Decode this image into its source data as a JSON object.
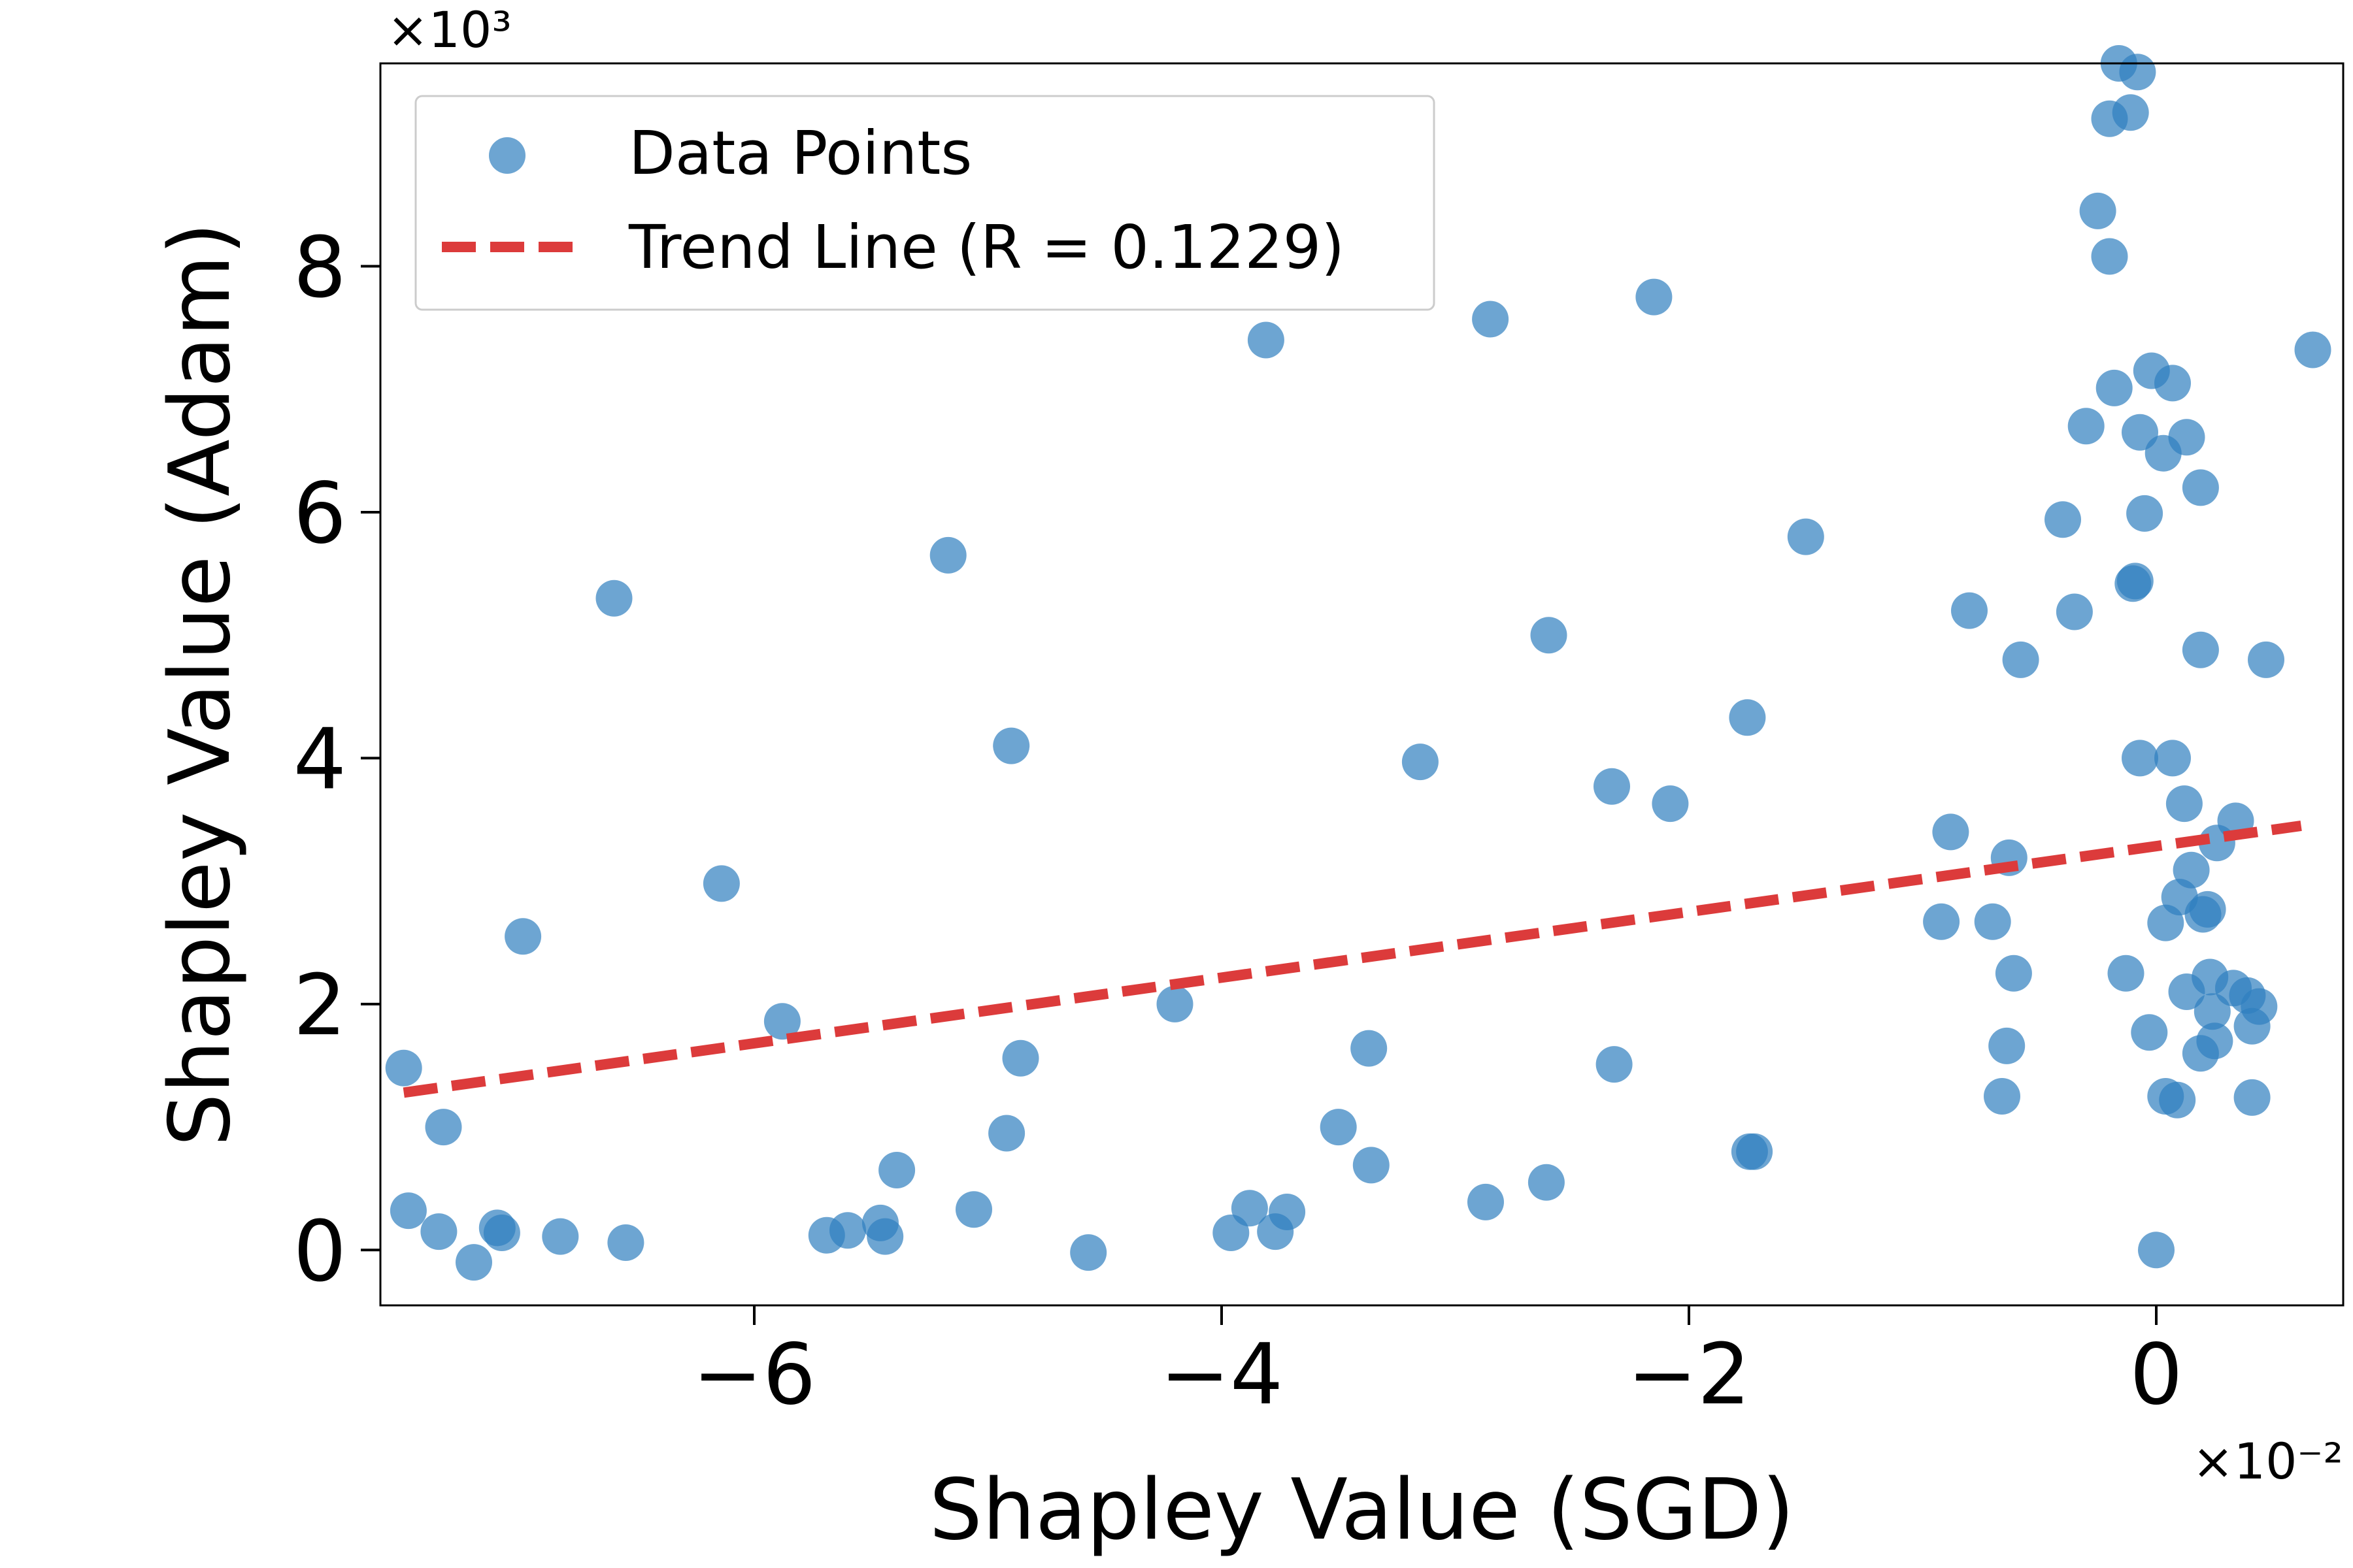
{
  "chart_data": {
    "type": "scatter",
    "title": "",
    "xlabel": "Shapley Value (SGD)",
    "ylabel": "Shapley Value (Adam)",
    "x_multiplier": "×10⁻²",
    "y_multiplier": "×10³",
    "xlim": [
      -7.6,
      0.8
    ],
    "ylim": [
      -0.45,
      9.65
    ],
    "xticks": [
      -6,
      -4,
      -2,
      0
    ],
    "xtick_labels": [
      "−6",
      "−4",
      "−2",
      "0"
    ],
    "yticks": [
      0,
      2,
      4,
      6,
      8
    ],
    "ytick_labels": [
      "0",
      "2",
      "4",
      "6",
      "8"
    ],
    "legend": {
      "position": "top-left",
      "entries": [
        {
          "label": "Data Points",
          "kind": "marker"
        },
        {
          "label": "Trend Line (R = 0.1229)",
          "kind": "dashed-line"
        }
      ]
    },
    "colors": {
      "points": "#2f7fbf",
      "trend": "#dc3b3b"
    },
    "series": [
      {
        "name": "Data Points",
        "points": [
          [
            -7.5,
            1.48
          ],
          [
            -7.48,
            0.32
          ],
          [
            -7.35,
            0.15
          ],
          [
            -7.33,
            1.0
          ],
          [
            -7.2,
            -0.1
          ],
          [
            -7.1,
            0.18
          ],
          [
            -7.08,
            0.14
          ],
          [
            -6.99,
            2.55
          ],
          [
            -6.83,
            0.11
          ],
          [
            -6.6,
            5.3
          ],
          [
            -6.55,
            0.06
          ],
          [
            -6.14,
            2.98
          ],
          [
            -5.88,
            1.86
          ],
          [
            -5.69,
            0.12
          ],
          [
            -5.6,
            0.16
          ],
          [
            -5.46,
            0.22
          ],
          [
            -5.44,
            0.11
          ],
          [
            -5.39,
            0.65
          ],
          [
            -5.17,
            5.65
          ],
          [
            -5.06,
            0.33
          ],
          [
            -4.92,
            0.95
          ],
          [
            -4.9,
            4.1
          ],
          [
            -4.86,
            1.56
          ],
          [
            -4.57,
            -0.02
          ],
          [
            -4.2,
            2.0
          ],
          [
            -3.96,
            0.14
          ],
          [
            -3.88,
            0.34
          ],
          [
            -3.81,
            7.4
          ],
          [
            -3.77,
            0.15
          ],
          [
            -3.72,
            0.31
          ],
          [
            -3.5,
            1.0
          ],
          [
            -3.37,
            1.64
          ],
          [
            -3.36,
            0.69
          ],
          [
            -3.15,
            3.97
          ],
          [
            -2.87,
            0.39
          ],
          [
            -2.85,
            7.57
          ],
          [
            -2.61,
            0.55
          ],
          [
            -2.6,
            5.0
          ],
          [
            -2.33,
            3.77
          ],
          [
            -2.32,
            1.51
          ],
          [
            -2.15,
            7.75
          ],
          [
            -2.08,
            3.63
          ],
          [
            -1.75,
            4.33
          ],
          [
            -1.74,
            0.8
          ],
          [
            -1.72,
            0.8
          ],
          [
            -1.5,
            5.8
          ],
          [
            -0.92,
            2.67
          ],
          [
            -0.88,
            3.4
          ],
          [
            -0.8,
            5.2
          ],
          [
            -0.7,
            2.67
          ],
          [
            -0.66,
            1.25
          ],
          [
            -0.64,
            1.66
          ],
          [
            -0.63,
            3.19
          ],
          [
            -0.61,
            2.25
          ],
          [
            -0.58,
            4.8
          ],
          [
            -0.4,
            5.94
          ],
          [
            -0.35,
            5.19
          ],
          [
            -0.3,
            6.7
          ],
          [
            -0.25,
            8.45
          ],
          [
            -0.2,
            8.08
          ],
          [
            -0.2,
            9.2
          ],
          [
            -0.18,
            7.01
          ],
          [
            -0.16,
            9.65
          ],
          [
            -0.13,
            2.25
          ],
          [
            -0.11,
            9.25
          ],
          [
            -0.1,
            5.42
          ],
          [
            -0.09,
            5.44
          ],
          [
            -0.08,
            9.58
          ],
          [
            -0.07,
            4.0
          ],
          [
            -0.07,
            6.65
          ],
          [
            -0.05,
            5.99
          ],
          [
            -0.03,
            1.77
          ],
          [
            -0.02,
            7.15
          ],
          [
            0.0,
            0.0
          ],
          [
            0.03,
            6.48
          ],
          [
            0.04,
            2.66
          ],
          [
            0.04,
            1.25
          ],
          [
            0.07,
            7.05
          ],
          [
            0.07,
            4.0
          ],
          [
            0.09,
            1.22
          ],
          [
            0.1,
            2.87
          ],
          [
            0.12,
            3.63
          ],
          [
            0.13,
            6.61
          ],
          [
            0.13,
            2.1
          ],
          [
            0.15,
            3.09
          ],
          [
            0.19,
            1.6
          ],
          [
            0.19,
            6.2
          ],
          [
            0.19,
            4.88
          ],
          [
            0.2,
            2.73
          ],
          [
            0.22,
            2.77
          ],
          [
            0.23,
            2.22
          ],
          [
            0.24,
            1.94
          ],
          [
            0.25,
            1.7
          ],
          [
            0.26,
            3.31
          ],
          [
            0.33,
            2.13
          ],
          [
            0.34,
            3.49
          ],
          [
            0.39,
            2.07
          ],
          [
            0.41,
            1.24
          ],
          [
            0.41,
            1.82
          ],
          [
            0.44,
            1.98
          ],
          [
            0.47,
            4.8
          ],
          [
            0.67,
            7.32
          ]
        ]
      },
      {
        "name": "Trend Line (R = 0.1229)",
        "x": [
          -7.5,
          0.62
        ],
        "y": [
          1.28,
          3.45
        ]
      }
    ]
  }
}
